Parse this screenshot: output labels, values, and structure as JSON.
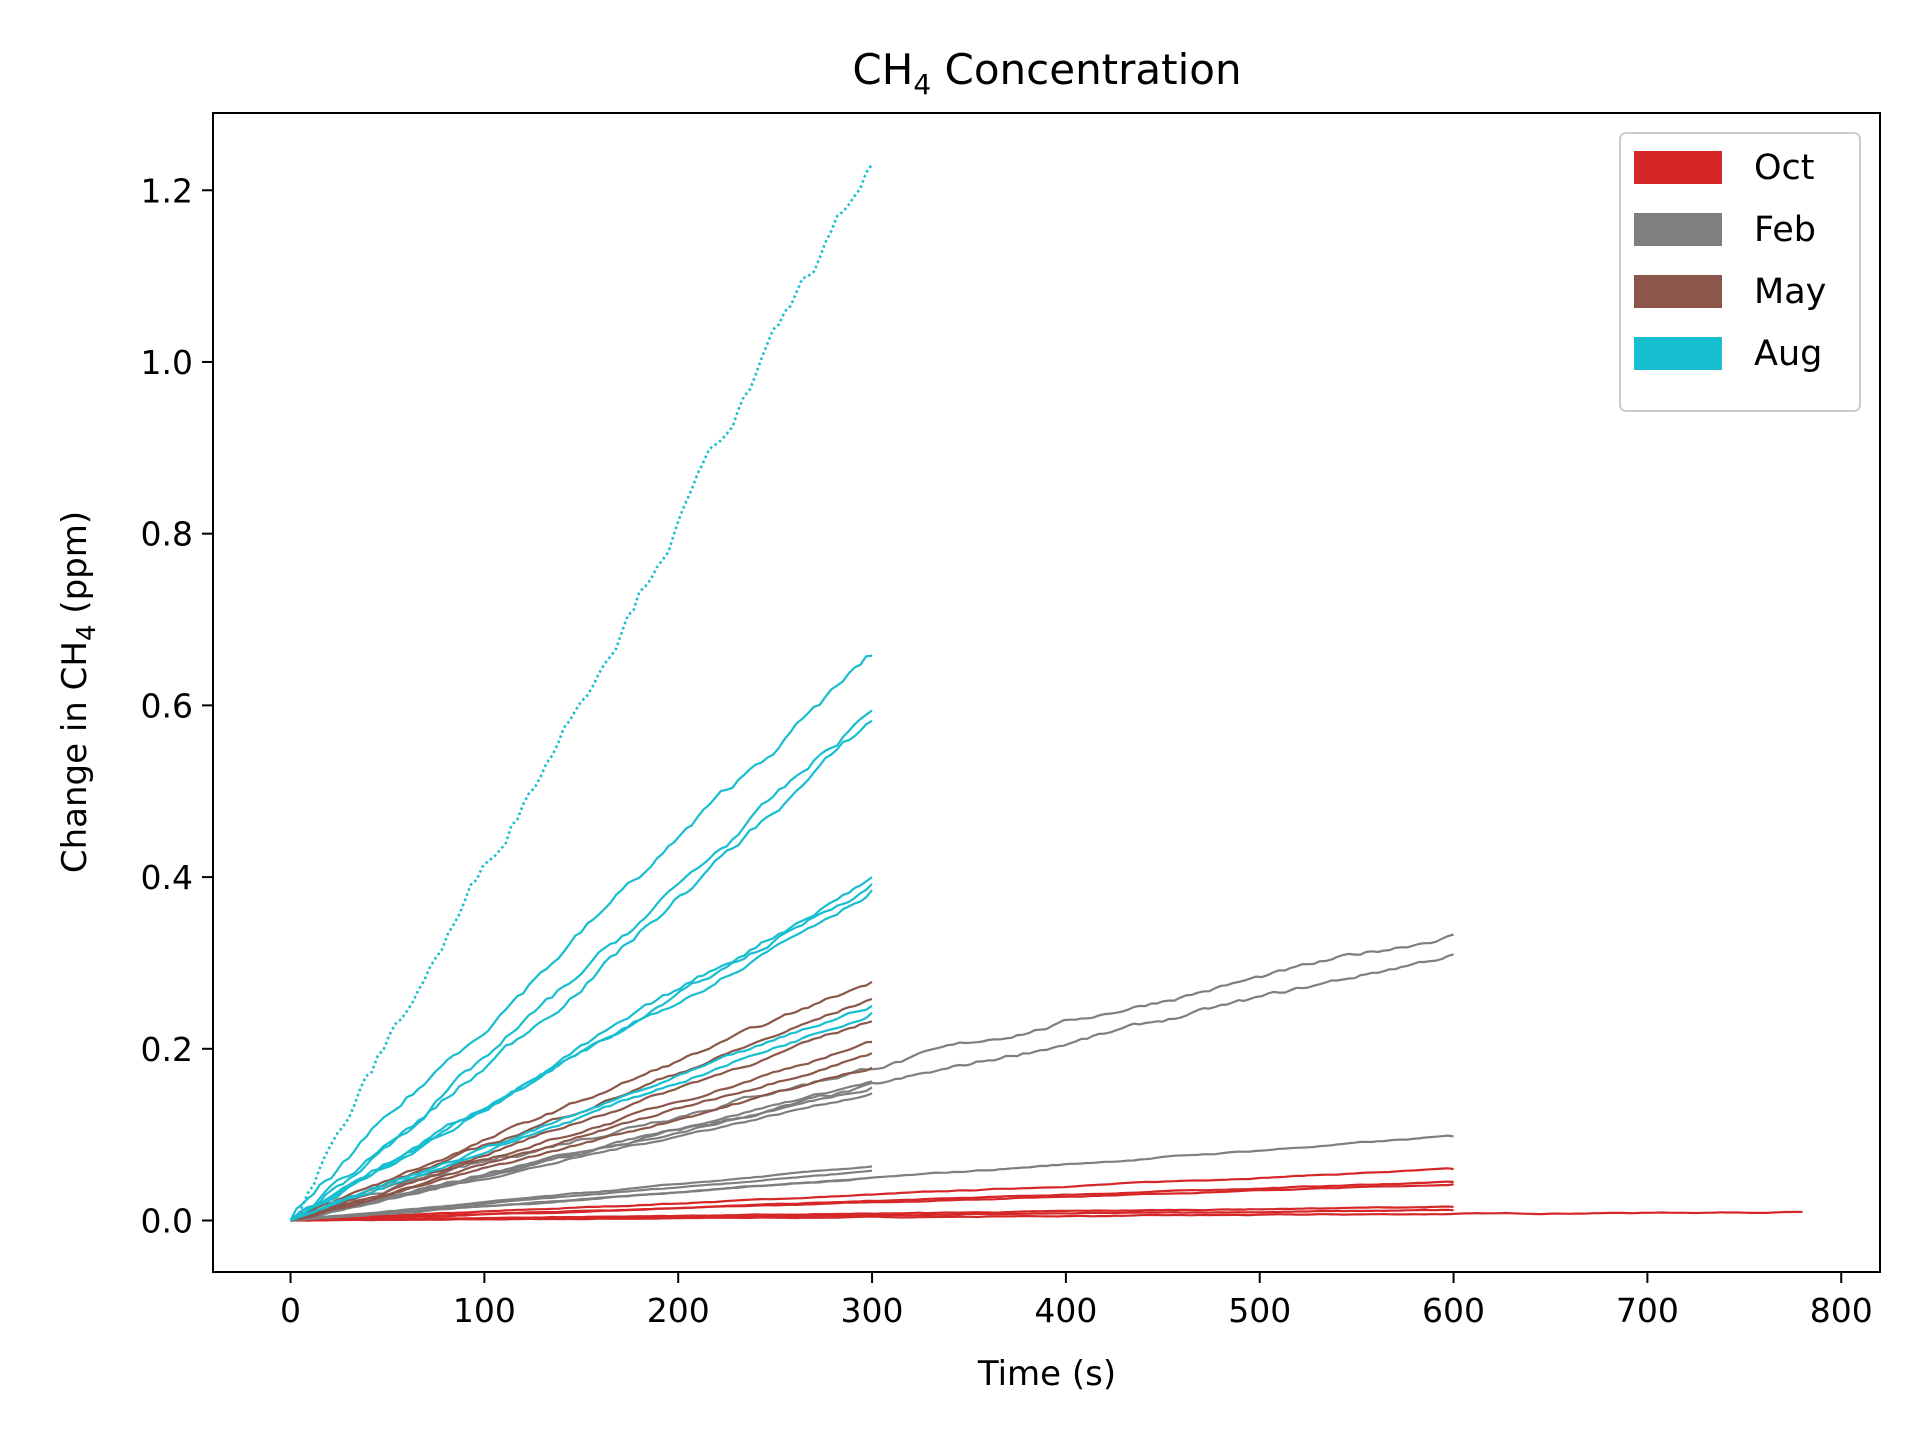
{
  "chart_data": {
    "type": "line",
    "title": {
      "main": "CH",
      "sub": "4",
      "rest": " Concentration"
    },
    "xlabel": "Time (s)",
    "ylabel": {
      "pre": "Change in CH",
      "sub": "4",
      "post": " (ppm)"
    },
    "xlim": [
      -40,
      820
    ],
    "ylim": [
      -0.06,
      1.29
    ],
    "xticks": [
      0,
      100,
      200,
      300,
      400,
      500,
      600,
      700,
      800
    ],
    "yticks": [
      0.0,
      0.2,
      0.4,
      0.6,
      0.8,
      1.0,
      1.2
    ],
    "grid": false,
    "legend_position": "top-right",
    "legend": [
      {
        "label": "Oct",
        "color": "#d62728"
      },
      {
        "label": "Feb",
        "color": "#7f7f7f"
      },
      {
        "label": "May",
        "color": "#8c564b"
      },
      {
        "label": "Aug",
        "color": "#17becf"
      }
    ],
    "series": [
      {
        "group": "Oct",
        "color": "#d62728",
        "x_end": 780,
        "y_end": 0.01,
        "curve": 1.0
      },
      {
        "group": "Oct",
        "color": "#d62728",
        "x_end": 600,
        "y_end": 0.06,
        "curve": 1.0
      },
      {
        "group": "Oct",
        "color": "#d62728",
        "x_end": 600,
        "y_end": 0.045,
        "curve": 1.0
      },
      {
        "group": "Oct",
        "color": "#d62728",
        "x_end": 600,
        "y_end": 0.042,
        "curve": 1.0
      },
      {
        "group": "Oct",
        "color": "#d62728",
        "x_end": 600,
        "y_end": 0.016,
        "curve": 1.0
      },
      {
        "group": "Oct",
        "color": "#d62728",
        "x_end": 600,
        "y_end": 0.012,
        "curve": 1.0
      },
      {
        "group": "Oct",
        "color": "#d62728",
        "x_end": 300,
        "y_end": 0.008,
        "curve": 1.0
      },
      {
        "group": "Feb",
        "color": "#7f7f7f",
        "x_end": 600,
        "y_end": 0.333,
        "curve": 0.9
      },
      {
        "group": "Feb",
        "color": "#7f7f7f",
        "x_end": 600,
        "y_end": 0.31,
        "curve": 1.0
      },
      {
        "group": "Feb",
        "color": "#7f7f7f",
        "x_end": 600,
        "y_end": 0.098,
        "curve": 1.0
      },
      {
        "group": "Feb",
        "color": "#7f7f7f",
        "x_end": 300,
        "y_end": 0.162,
        "curve": 1.0
      },
      {
        "group": "Feb",
        "color": "#7f7f7f",
        "x_end": 300,
        "y_end": 0.155,
        "curve": 1.0
      },
      {
        "group": "Feb",
        "color": "#7f7f7f",
        "x_end": 300,
        "y_end": 0.148,
        "curve": 1.0
      },
      {
        "group": "Feb",
        "color": "#7f7f7f",
        "x_end": 300,
        "y_end": 0.063,
        "curve": 1.0
      },
      {
        "group": "Feb",
        "color": "#7f7f7f",
        "x_end": 300,
        "y_end": 0.058,
        "curve": 1.0
      },
      {
        "group": "Feb",
        "color": "#7f7f7f",
        "x_end": 300,
        "y_end": 0.05,
        "curve": 1.0
      },
      {
        "group": "May",
        "color": "#8c564b",
        "x_end": 300,
        "y_end": 0.278,
        "curve": 1.0
      },
      {
        "group": "May",
        "color": "#8c564b",
        "x_end": 300,
        "y_end": 0.258,
        "curve": 1.0
      },
      {
        "group": "May",
        "color": "#8c564b",
        "x_end": 300,
        "y_end": 0.232,
        "curve": 1.0
      },
      {
        "group": "May",
        "color": "#8c564b",
        "x_end": 300,
        "y_end": 0.208,
        "curve": 1.0
      },
      {
        "group": "May",
        "color": "#8c564b",
        "x_end": 300,
        "y_end": 0.195,
        "curve": 1.0
      },
      {
        "group": "May",
        "color": "#8c564b",
        "x_end": 300,
        "y_end": 0.178,
        "curve": 1.0
      },
      {
        "group": "Aug",
        "color": "#17becf",
        "x_end": 300,
        "y_end": 1.23,
        "curve": 1.0,
        "dotted": true
      },
      {
        "group": "Aug",
        "color": "#17becf",
        "x_end": 300,
        "y_end": 0.658,
        "curve": 0.97
      },
      {
        "group": "Aug",
        "color": "#17becf",
        "x_end": 300,
        "y_end": 0.594,
        "curve": 1.05
      },
      {
        "group": "Aug",
        "color": "#17becf",
        "x_end": 300,
        "y_end": 0.582,
        "curve": 1.08
      },
      {
        "group": "Aug",
        "color": "#17becf",
        "x_end": 300,
        "y_end": 0.4,
        "curve": 1.0
      },
      {
        "group": "Aug",
        "color": "#17becf",
        "x_end": 300,
        "y_end": 0.392,
        "curve": 1.0
      },
      {
        "group": "Aug",
        "color": "#17becf",
        "x_end": 300,
        "y_end": 0.385,
        "curve": 1.0
      },
      {
        "group": "Aug",
        "color": "#17becf",
        "x_end": 300,
        "y_end": 0.25,
        "curve": 1.0
      },
      {
        "group": "Aug",
        "color": "#17becf",
        "x_end": 300,
        "y_end": 0.242,
        "curve": 1.0
      }
    ]
  }
}
